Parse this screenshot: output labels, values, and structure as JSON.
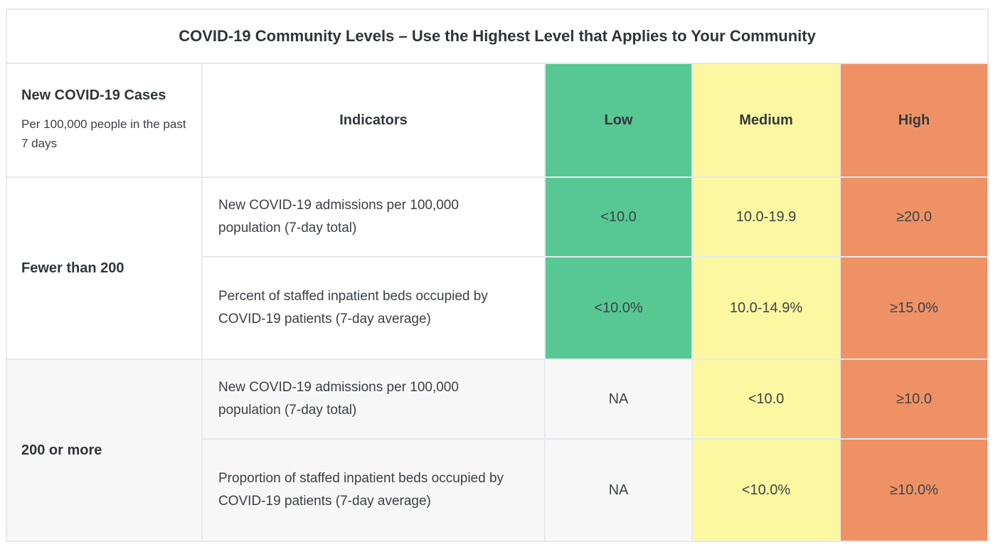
{
  "colors": {
    "low": "#57C794",
    "medium": "#FBF8A1",
    "high": "#EE9265",
    "na": "#F7F7F7",
    "border": "#E6E9EC"
  },
  "table": {
    "title": "COVID-19 Community Levels – Use the Highest Level that Applies to Your Community",
    "header": {
      "cases_title": "New COVID-19 Cases",
      "cases_subtitle": "Per 100,000 people in the past 7 days",
      "indicators": "Indicators",
      "low": "Low",
      "medium": "Medium",
      "high": "High"
    },
    "groups": [
      {
        "cases": "Fewer than 200",
        "rows": [
          {
            "indicator": "New COVID-19 admissions per 100,000 population (7-day total)",
            "low": "<10.0",
            "medium": "10.0-19.9",
            "high": "≥20.0"
          },
          {
            "indicator": "Percent of staffed inpatient beds occupied by COVID-19 patients (7-day average)",
            "low": "<10.0%",
            "medium": "10.0-14.9%",
            "high": "≥15.0%"
          }
        ]
      },
      {
        "cases": "200 or more",
        "rows": [
          {
            "indicator": "New COVID-19 admissions per 100,000 population (7-day total)",
            "low": "NA",
            "medium": "<10.0",
            "high": "≥10.0"
          },
          {
            "indicator": "Proportion of staffed inpatient beds occupied by COVID-19 patients (7-day average)",
            "low": "NA",
            "medium": "<10.0%",
            "high": "≥10.0%"
          }
        ]
      }
    ]
  },
  "chart_data": {
    "type": "table",
    "title": "COVID-19 Community Levels – Use the Highest Level that Applies to Your Community",
    "columns": [
      "New COVID-19 Cases (Per 100,000 people in the past 7 days)",
      "Indicators",
      "Low",
      "Medium",
      "High"
    ],
    "rows": [
      [
        "Fewer than 200",
        "New COVID-19 admissions per 100,000 population (7-day total)",
        "<10.0",
        "10.0-19.9",
        "≥20.0"
      ],
      [
        "Fewer than 200",
        "Percent of staffed inpatient beds occupied by COVID-19 patients (7-day average)",
        "<10.0%",
        "10.0-14.9%",
        "≥15.0%"
      ],
      [
        "200 or more",
        "New COVID-19 admissions per 100,000 population (7-day total)",
        "NA",
        "<10.0",
        "≥10.0"
      ],
      [
        "200 or more",
        "Proportion of staffed inpatient beds occupied by COVID-19 patients (7-day average)",
        "NA",
        "<10.0%",
        "≥10.0%"
      ]
    ],
    "cell_colors": {
      "low": "#57C794",
      "medium": "#FBF8A1",
      "high": "#EE9265",
      "na": "#F7F7F7"
    },
    "layout_hints": {
      "grid": "light gray 2px borders",
      "na_cells_use_striped_row_background": true
    }
  }
}
